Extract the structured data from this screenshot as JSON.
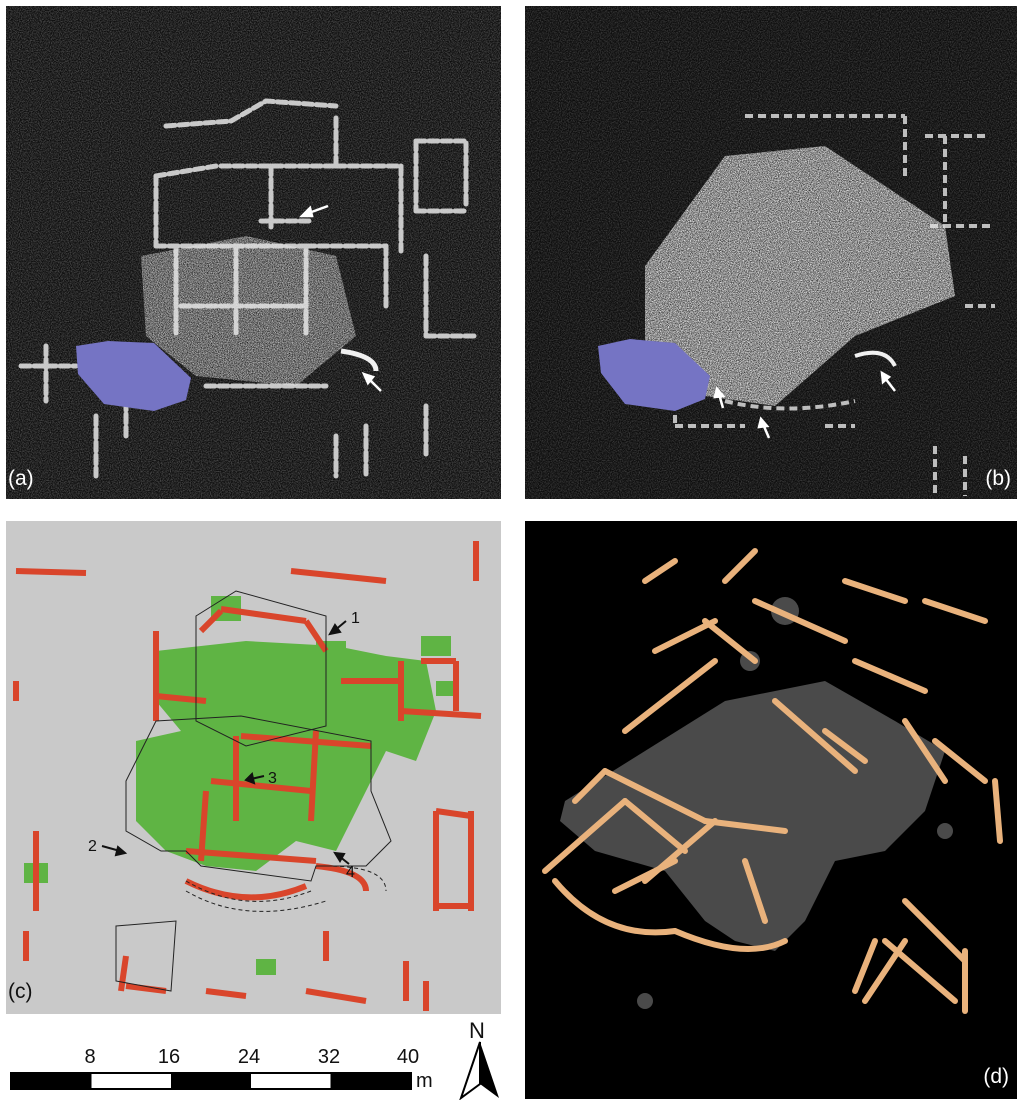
{
  "panels": {
    "a": {
      "label": "(a)"
    },
    "b": {
      "label": "(b)"
    },
    "c": {
      "label": "(c)",
      "callouts": [
        "1",
        "2",
        "3",
        "4"
      ]
    },
    "d": {
      "label": "(d)"
    }
  },
  "scale_bar": {
    "ticks": [
      "8",
      "16",
      "24",
      "32",
      "40"
    ],
    "unit": "m"
  },
  "north_arrow": {
    "label": "N"
  },
  "colors": {
    "gpr_bg": "#0d0d0d",
    "gpr_reflection": "#e8e8e8",
    "masked_area": "#7574c4",
    "map_bg": "#c9c9c9",
    "walls_red": "#d9452b",
    "floors_green": "#5fb444",
    "render_bg": "#000000",
    "render_walls": "#e9b27c",
    "render_floors": "#4a4a4a"
  }
}
